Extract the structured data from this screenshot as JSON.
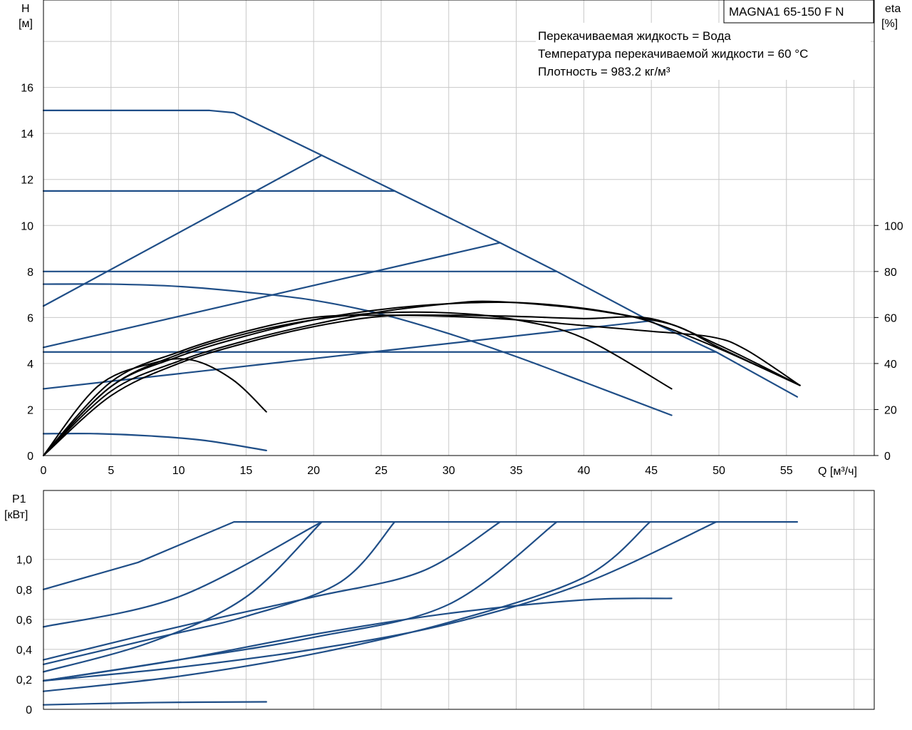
{
  "chart_data": [
    {
      "type": "line",
      "model": "MAGNA1 65-150 F N",
      "info": [
        "Перекачиваемая жидкость = Вода",
        "Температура перекачиваемой жидкости = 60 °C",
        "Плотность = 983.2 кг/м³"
      ],
      "y_label_left": [
        "H",
        "[м]"
      ],
      "y_label_right": [
        "eta",
        "[%]"
      ],
      "x_label": "Q [м³/ч]",
      "xlim": [
        0,
        61.5
      ],
      "ylim": [
        0,
        19.8
      ],
      "x_ticks": [
        "0",
        "5",
        "10",
        "15",
        "20",
        "25",
        "30",
        "35",
        "40",
        "45",
        "50",
        "55"
      ],
      "y_ticks_left": [
        "0",
        "2",
        "4",
        "6",
        "8",
        "10",
        "12",
        "14",
        "16"
      ],
      "y_ticks_right": [
        "0",
        "20",
        "40",
        "60",
        "80",
        "100"
      ],
      "grid": true,
      "head_curves": [
        {
          "points": [
            [
              0,
              15.0
            ],
            [
              12.3,
              15.0
            ],
            [
              14.1,
              14.9
            ],
            [
              20.6,
              13.05
            ],
            [
              26,
              11.5
            ],
            [
              33.8,
              9.25
            ],
            [
              38,
              8.0
            ],
            [
              44.9,
              5.85
            ],
            [
              49.8,
              4.5
            ],
            [
              55.8,
              2.55
            ]
          ]
        },
        {
          "points": [
            [
              0,
              11.5
            ],
            [
              26,
              11.5
            ]
          ]
        },
        {
          "points": [
            [
              0,
              8.0
            ],
            [
              38,
              8.0
            ]
          ]
        },
        {
          "points": [
            [
              0,
              4.5
            ],
            [
              49.8,
              4.5
            ]
          ]
        },
        {
          "points": [
            [
              0,
              6.5
            ],
            [
              20.6,
              13.05
            ]
          ]
        },
        {
          "points": [
            [
              0,
              4.7
            ],
            [
              33.8,
              9.25
            ]
          ]
        },
        {
          "points": [
            [
              0,
              2.9
            ],
            [
              44.9,
              5.85
            ]
          ]
        },
        {
          "points": [
            [
              0,
              7.45
            ],
            [
              5,
              7.45
            ],
            [
              10,
              7.35
            ],
            [
              15,
              7.1
            ],
            [
              20,
              6.75
            ],
            [
              25,
              6.15
            ],
            [
              30,
              5.3
            ],
            [
              35,
              4.3
            ],
            [
              40,
              3.2
            ],
            [
              46.5,
              1.75
            ]
          ]
        },
        {
          "points": [
            [
              0,
              0.95
            ],
            [
              4,
              0.95
            ],
            [
              8,
              0.85
            ],
            [
              12,
              0.65
            ],
            [
              16.5,
              0.22
            ]
          ]
        }
      ],
      "efficiency_curves": [
        {
          "points": [
            [
              0,
              0
            ],
            [
              4,
              30
            ],
            [
              8,
              40
            ],
            [
              11,
              41.5
            ],
            [
              14,
              33
            ],
            [
              16.5,
              19
            ]
          ]
        },
        {
          "points": [
            [
              0,
              0
            ],
            [
              5,
              30
            ],
            [
              10,
              44
            ],
            [
              15,
              53
            ],
            [
              20,
              59
            ],
            [
              25,
              62
            ],
            [
              30,
              62
            ],
            [
              35,
              59
            ],
            [
              40,
              51
            ],
            [
              46.5,
              29
            ]
          ]
        },
        {
          "points": [
            [
              0,
              0
            ],
            [
              5,
              32
            ],
            [
              10,
              45
            ],
            [
              15,
              54
            ],
            [
              20,
              60
            ],
            [
              25,
              61
            ],
            [
              30,
              60.5
            ],
            [
              35,
              59
            ],
            [
              40,
              56.5
            ],
            [
              45,
              54
            ],
            [
              49.5,
              51.5
            ],
            [
              52,
              46
            ],
            [
              56,
              30.5
            ]
          ]
        },
        {
          "points": [
            [
              0,
              0
            ],
            [
              5,
              28
            ],
            [
              10,
              41
            ],
            [
              15,
              50
            ],
            [
              20,
              57
            ],
            [
              25,
              62.5
            ],
            [
              30,
              66
            ],
            [
              33,
              67
            ],
            [
              38,
              65
            ],
            [
              42,
              62
            ],
            [
              45,
              58
            ],
            [
              50,
              46.5
            ],
            [
              56,
              30.5
            ]
          ]
        },
        {
          "points": [
            [
              0,
              0
            ],
            [
              5,
              30
            ],
            [
              10,
              43
            ],
            [
              15,
              52
            ],
            [
              20,
              59
            ],
            [
              25,
              63.5
            ],
            [
              30,
              66
            ],
            [
              35,
              66.5
            ],
            [
              40,
              64
            ],
            [
              44,
              60
            ],
            [
              47,
              56
            ],
            [
              50,
              47
            ],
            [
              56,
              30.5
            ]
          ]
        },
        {
          "points": [
            [
              0,
              0
            ],
            [
              5,
              26
            ],
            [
              10,
              40
            ],
            [
              15,
              49
            ],
            [
              20,
              56
            ],
            [
              25,
              60.5
            ],
            [
              30,
              61
            ],
            [
              35,
              60.5
            ],
            [
              40,
              59.5
            ],
            [
              45,
              59.5
            ],
            [
              50,
              48
            ],
            [
              56,
              30.5
            ]
          ]
        }
      ]
    },
    {
      "type": "line",
      "y_label": [
        "P1",
        "[кВт]"
      ],
      "xlim": [
        0,
        61.5
      ],
      "ylim": [
        0,
        1.46
      ],
      "y_ticks": [
        "0",
        "0,2",
        "0,4",
        "0,6",
        "0,8",
        "1,0"
      ],
      "grid": true,
      "power_curves": [
        {
          "points": [
            [
              0,
              0.8
            ],
            [
              7,
              0.98
            ],
            [
              14.1,
              1.25
            ],
            [
              55.8,
              1.25
            ]
          ]
        },
        {
          "points": [
            [
              0,
              0.55
            ],
            [
              10,
              0.75
            ],
            [
              20.6,
              1.25
            ]
          ]
        },
        {
          "points": [
            [
              0,
              0.25
            ],
            [
              8,
              0.45
            ],
            [
              15,
              0.75
            ],
            [
              20.6,
              1.25
            ]
          ]
        },
        {
          "points": [
            [
              0,
              0.3
            ],
            [
              8,
              0.47
            ],
            [
              15,
              0.62
            ],
            [
              22,
              0.85
            ],
            [
              26,
              1.25
            ]
          ]
        },
        {
          "points": [
            [
              0,
              0.33
            ],
            [
              10,
              0.55
            ],
            [
              20,
              0.75
            ],
            [
              28,
              0.92
            ],
            [
              33.8,
              1.25
            ]
          ]
        },
        {
          "points": [
            [
              0,
              0.19
            ],
            [
              10,
              0.33
            ],
            [
              20,
              0.48
            ],
            [
              30,
              0.7
            ],
            [
              38,
              1.25
            ]
          ]
        },
        {
          "points": [
            [
              0,
              0.12
            ],
            [
              10,
              0.22
            ],
            [
              20,
              0.37
            ],
            [
              30,
              0.58
            ],
            [
              40,
              0.88
            ],
            [
              44.9,
              1.25
            ]
          ]
        },
        {
          "points": [
            [
              0,
              0.19
            ],
            [
              10,
              0.28
            ],
            [
              20,
              0.4
            ],
            [
              30,
              0.57
            ],
            [
              40,
              0.84
            ],
            [
              49.8,
              1.25
            ]
          ]
        },
        {
          "points": [
            [
              0,
              0.19
            ],
            [
              10,
              0.33
            ],
            [
              20,
              0.5
            ],
            [
              30,
              0.64
            ],
            [
              40,
              0.73
            ],
            [
              46.5,
              0.74
            ]
          ]
        },
        {
          "points": [
            [
              0,
              0.03
            ],
            [
              8,
              0.045
            ],
            [
              16.5,
              0.05
            ]
          ]
        }
      ]
    }
  ]
}
